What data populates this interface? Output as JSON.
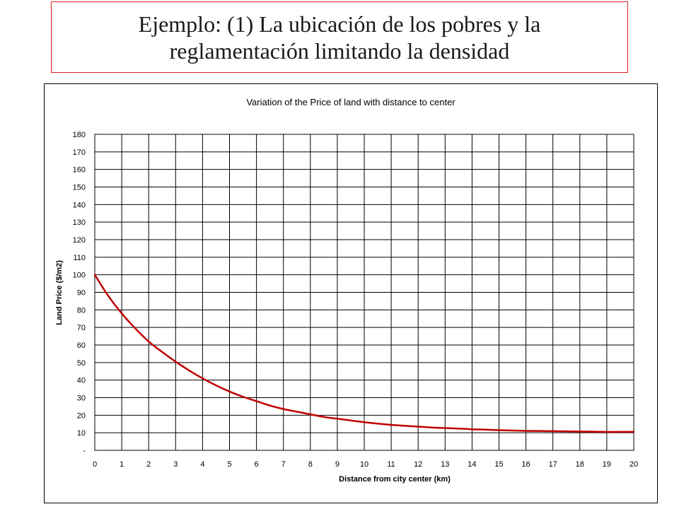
{
  "slide": {
    "title_line1": "Ejemplo: (1) La ubicación de los pobres y la",
    "title_line2": "reglamentación limitando la densidad"
  },
  "chart_data": {
    "type": "line",
    "title": "Variation of the Price of land with distance to center",
    "xlabel": "Distance from city center (km)",
    "ylabel": "Land Price ($/m2)",
    "xlim": [
      0,
      20
    ],
    "ylim": [
      0,
      180
    ],
    "x_ticks": [
      0,
      1,
      2,
      3,
      4,
      5,
      6,
      7,
      8,
      9,
      10,
      11,
      12,
      13,
      14,
      15,
      16,
      17,
      18,
      19,
      20
    ],
    "x_tick_labels": [
      "0",
      "1",
      "2",
      "3",
      "4",
      "5",
      "6",
      "7",
      "8",
      "9",
      "10",
      "11",
      "12",
      "13",
      "14",
      "15",
      "16",
      "17",
      "18",
      "19",
      "20"
    ],
    "y_ticks": [
      0,
      10,
      20,
      30,
      40,
      50,
      60,
      70,
      80,
      90,
      100,
      110,
      120,
      130,
      140,
      150,
      160,
      170,
      180
    ],
    "y_tick_labels": [
      "-",
      "10",
      "20",
      "30",
      "40",
      "50",
      "60",
      "70",
      "80",
      "90",
      "100",
      "110",
      "120",
      "130",
      "140",
      "150",
      "160",
      "170",
      "180"
    ],
    "grid": true,
    "legend": "none",
    "series": [
      {
        "color": "#c00000",
        "x": [
          0,
          0.5,
          1,
          1.5,
          2,
          2.5,
          3,
          3.5,
          4,
          4.5,
          5,
          5.5,
          6,
          6.5,
          7,
          7.5,
          8,
          8.5,
          9,
          9.5,
          10,
          10.5,
          11,
          11.5,
          12,
          12.5,
          13,
          13.5,
          14,
          14.5,
          15,
          15.5,
          16,
          16.5,
          17,
          17.5,
          18,
          18.5,
          19,
          19.5,
          20
        ],
        "y": [
          100,
          88,
          78,
          69.5,
          62,
          56,
          50.5,
          45.5,
          41,
          37,
          33.5,
          30.5,
          28,
          25.5,
          23.5,
          22,
          20.5,
          19,
          18,
          17,
          16,
          15.2,
          14.5,
          14,
          13.5,
          13,
          12.7,
          12.4,
          12,
          11.8,
          11.5,
          11.3,
          11.1,
          11,
          10.9,
          10.8,
          10.7,
          10.6,
          10.5,
          10.5,
          10.5
        ]
      }
    ]
  }
}
